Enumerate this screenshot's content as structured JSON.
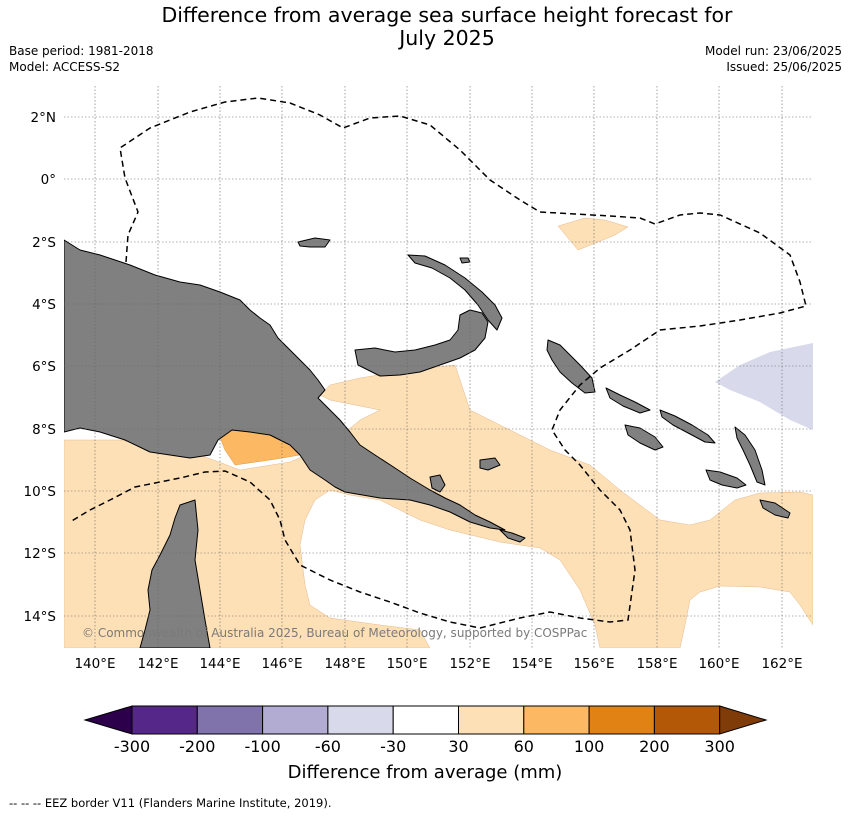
{
  "title_line1": "Difference from average sea surface height forecast for",
  "title_line2": "July 2025",
  "base_period": "Base period: 1981-2018",
  "model": "Model: ACCESS-S2",
  "model_run": "Model run: 23/06/2025",
  "issued": "Issued: 25/06/2025",
  "copyright": "© Commonwealth of Australia 2025, Bureau of Meteorology, supported by COSPPac",
  "lat_labels": [
    "2°N",
    "0°",
    "2°S",
    "4°S",
    "6°S",
    "8°S",
    "10°S",
    "12°S",
    "14°S"
  ],
  "lon_labels": [
    "140°E",
    "142°E",
    "144°E",
    "146°E",
    "148°E",
    "150°E",
    "152°E",
    "154°E",
    "156°E",
    "158°E",
    "160°E",
    "162°E"
  ],
  "colorbar": {
    "label": "Difference from average (mm)",
    "ticks": [
      "-300",
      "-200",
      "-100",
      "-60",
      "-30",
      "30",
      "60",
      "100",
      "200",
      "300"
    ],
    "colors": [
      "#2d004b",
      "#542788",
      "#8073ac",
      "#b2abd2",
      "#d8daeb",
      "#ffffff",
      "#fee0b6",
      "#fdb863",
      "#e08214",
      "#b35806",
      "#7f3b08"
    ]
  },
  "land_color": "#808080",
  "legend_text": "--  --  -- EEZ border V11 (Flanders Marine Institute, 2019).",
  "chart_data": {
    "type": "heatmap",
    "variable": "Difference from average sea surface height",
    "units": "mm",
    "lon_range": [
      139,
      163
    ],
    "lat_range": [
      -15,
      2.8
    ],
    "grid": true,
    "regions": [
      {
        "category": "30 to 60",
        "area": "Coral Sea, Gulf of Papua, Solomon Sea and Gulf of Carpentaria"
      },
      {
        "category": "60 to 100",
        "area": "Gulf of Papua near 144-146°E, 8-9°S"
      },
      {
        "category": "30 to 60",
        "area": "Small patch north of Bismarck Sea near 155-157°E, 2°S"
      },
      {
        "category": "-60 to -30",
        "area": "East of the Solomon Islands near 160-163°E, 5-8°S"
      }
    ]
  }
}
